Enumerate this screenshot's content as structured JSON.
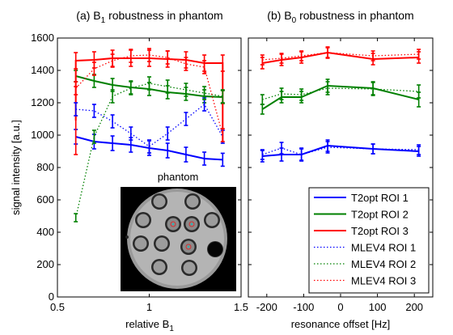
{
  "chart_data": [
    {
      "type": "line",
      "title_main": "(a) B",
      "title_sub": "1",
      "title_rest": " robustness in phantom",
      "xlabel_main": "relative B",
      "xlabel_sub": "1",
      "ylabel": "signal intensity [a.u.]",
      "xlim": [
        0.5,
        1.5
      ],
      "ylim": [
        0,
        1600
      ],
      "xticks": [
        0.5,
        1,
        1.5
      ],
      "xtick_labels": [
        "0.5",
        "1",
        "1.5"
      ],
      "yticks": [
        0,
        200,
        400,
        600,
        800,
        1000,
        1200,
        1400,
        1600
      ],
      "ytick_labels": [
        "0",
        "200",
        "400",
        "600",
        "800",
        "1000",
        "1200",
        "1400",
        "1600"
      ],
      "inset": {
        "label": "phantom"
      },
      "series": [
        {
          "name": "T2opt ROI 1",
          "color": "#0000ff",
          "style": "solid",
          "x": [
            0.6,
            0.7,
            0.8,
            0.9,
            1.0,
            1.1,
            1.2,
            1.3,
            1.4
          ],
          "y": [
            990,
            960,
            950,
            940,
            920,
            905,
            880,
            855,
            848
          ],
          "err": [
            45,
            45,
            45,
            45,
            45,
            45,
            45,
            40,
            40
          ]
        },
        {
          "name": "T2opt ROI 2",
          "color": "#008000",
          "style": "solid",
          "x": [
            0.6,
            0.7,
            0.8,
            0.9,
            1.0,
            1.1,
            1.2,
            1.3,
            1.4
          ],
          "y": [
            1365,
            1335,
            1310,
            1295,
            1285,
            1265,
            1255,
            1240,
            1235
          ],
          "err": [
            35,
            40,
            40,
            40,
            40,
            40,
            40,
            40,
            40
          ]
        },
        {
          "name": "T2opt ROI 3",
          "color": "#ff0000",
          "style": "solid",
          "x": [
            0.6,
            0.6,
            0.7,
            0.8,
            0.9,
            1.0,
            1.1,
            1.2,
            1.3,
            1.4,
            1.4
          ],
          "y": [
            1090,
            1460,
            1465,
            1475,
            1475,
            1475,
            1470,
            1465,
            1445,
            1445,
            960
          ],
          "err": [
            210,
            50,
            50,
            50,
            50,
            50,
            50,
            50,
            50,
            50,
            0
          ]
        },
        {
          "name": "MLEV4 ROI 1",
          "color": "#0000ff",
          "style": "dotted",
          "x": [
            0.6,
            0.7,
            0.8,
            0.9,
            1.0,
            1.1,
            1.2,
            1.3,
            1.4
          ],
          "y": [
            1160,
            1150,
            1085,
            1010,
            930,
            1010,
            1100,
            1190,
            990
          ],
          "err": [
            40,
            40,
            40,
            40,
            40,
            40,
            40,
            40,
            40
          ]
        },
        {
          "name": "MLEV4 ROI 2",
          "color": "#008000",
          "style": "dotted",
          "x": [
            0.6,
            0.7,
            0.8,
            0.9,
            1.0,
            1.1,
            1.2,
            1.3,
            1.4
          ],
          "y": [
            490,
            990,
            1240,
            1290,
            1320,
            1300,
            1280,
            1260,
            1240
          ],
          "err": [
            25,
            40,
            40,
            40,
            40,
            40,
            40,
            40,
            40
          ]
        },
        {
          "name": "MLEV4 ROI 3",
          "color": "#ff0000",
          "style": "dotted",
          "x": [
            0.6,
            0.7,
            0.8,
            0.9,
            1.0,
            1.1,
            1.2,
            1.3,
            1.4
          ],
          "y": [
            1290,
            1410,
            1460,
            1490,
            1495,
            1480,
            1440,
            1420,
            1000
          ],
          "err": [
            40,
            40,
            40,
            40,
            40,
            40,
            40,
            40,
            40
          ]
        }
      ]
    },
    {
      "type": "line",
      "title_main": "(b) B",
      "title_sub": "0",
      "title_rest": " robustness in phantom",
      "xlabel_main": "resonance offset [Hz]",
      "xlim": [
        -250,
        250
      ],
      "ylim": [
        0,
        1600
      ],
      "xticks": [
        -200,
        -100,
        0,
        100,
        200
      ],
      "xtick_labels": [
        "-200",
        "-100",
        "0",
        "100",
        "200"
      ],
      "yticks": [
        0,
        200,
        400,
        600,
        800,
        1000,
        1200,
        1400,
        1600
      ],
      "legend": {
        "position": "lower-right"
      },
      "series": [
        {
          "name": "T2opt ROI 1",
          "color": "#0000ff",
          "style": "solid",
          "x": [
            -212,
            -160,
            -106,
            -35,
            88,
            212
          ],
          "y": [
            870,
            880,
            880,
            935,
            915,
            900
          ],
          "err": [
            35,
            40,
            40,
            35,
            30,
            30
          ]
        },
        {
          "name": "T2opt ROI 2",
          "color": "#008000",
          "style": "solid",
          "x": [
            -212,
            -160,
            -106,
            -35,
            88,
            212
          ],
          "y": [
            1160,
            1235,
            1235,
            1305,
            1290,
            1220
          ],
          "err": [
            30,
            35,
            35,
            40,
            40,
            45
          ]
        },
        {
          "name": "T2opt ROI 3",
          "color": "#ff0000",
          "style": "solid",
          "x": [
            -212,
            -160,
            -106,
            -35,
            88,
            212
          ],
          "y": [
            1445,
            1465,
            1480,
            1510,
            1470,
            1480
          ],
          "err": [
            35,
            35,
            35,
            35,
            35,
            35
          ]
        },
        {
          "name": "MLEV4 ROI 1",
          "color": "#0000ff",
          "style": "dotted",
          "x": [
            -212,
            -160,
            -106,
            -35,
            88,
            212
          ],
          "y": [
            880,
            920,
            880,
            925,
            915,
            910
          ],
          "err": [
            30,
            35,
            35,
            35,
            30,
            30
          ]
        },
        {
          "name": "MLEV4 ROI 2",
          "color": "#008000",
          "style": "dotted",
          "x": [
            -212,
            -160,
            -106,
            -35,
            88,
            212
          ],
          "y": [
            1220,
            1255,
            1250,
            1290,
            1285,
            1270
          ],
          "err": [
            30,
            35,
            35,
            40,
            40,
            40
          ]
        },
        {
          "name": "MLEV4 ROI 3",
          "color": "#ff0000",
          "style": "dotted",
          "x": [
            -212,
            -160,
            -106,
            -35,
            88,
            212
          ],
          "y": [
            1465,
            1475,
            1490,
            1510,
            1490,
            1500
          ],
          "err": [
            30,
            30,
            30,
            30,
            30,
            30
          ]
        }
      ]
    }
  ]
}
